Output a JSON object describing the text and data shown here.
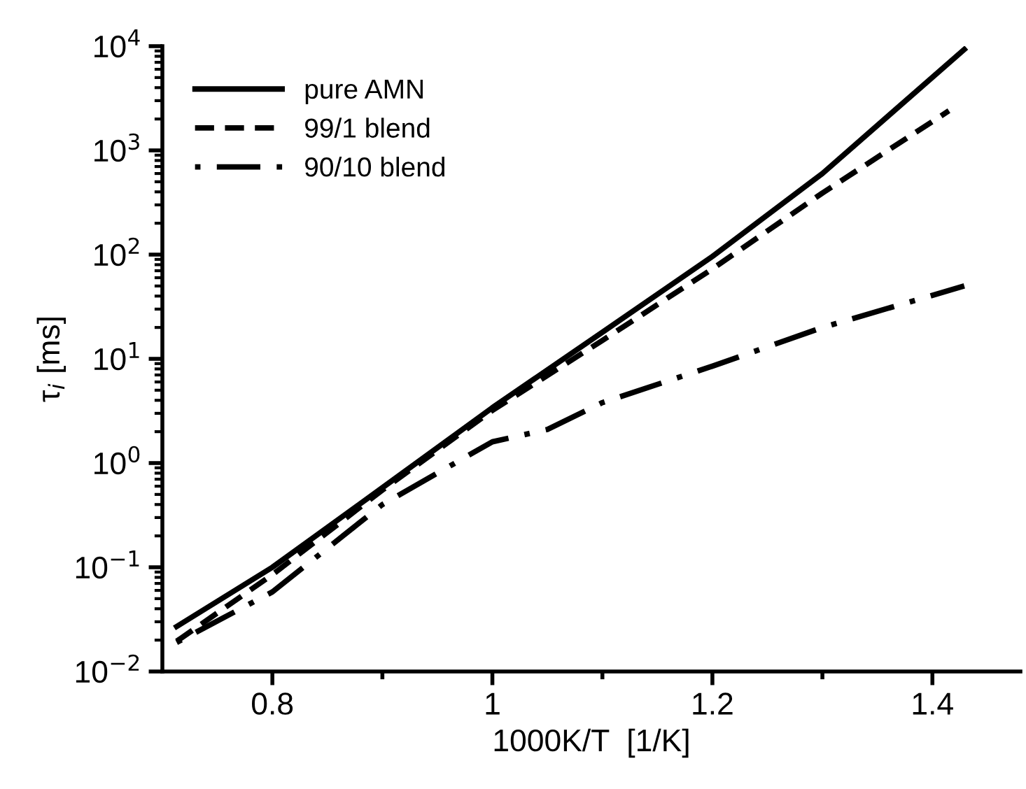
{
  "chart_data": {
    "type": "line",
    "xlabel": "1000K/T  [1/K]",
    "ylabel": "τ$_{i}$ [ms]",
    "log": "y",
    "legend": "top left",
    "grid": false,
    "marker": "none",
    "xlim": [
      0.7,
      1.48
    ],
    "xticks": [
      0.8,
      {
        "value": 0.9,
        "label": null
      },
      1,
      {
        "value": 1.1,
        "label": null
      },
      1.2,
      {
        "value": 1.3,
        "label": null
      },
      1.4
    ],
    "ylim": [
      0.01,
      10000
    ],
    "yticks": [
      {
        "value": 0.01,
        "label": "10$^{−2}$"
      },
      {
        "value": 0.1,
        "label": "10$^{−1}$"
      },
      {
        "value": 1,
        "label": "10$^{0}$"
      },
      {
        "value": 10,
        "label": "10$^{1}$"
      },
      {
        "value": 100,
        "label": "10$^{2}$"
      },
      {
        "value": 1000,
        "label": "10$^{3}$"
      },
      {
        "value": 10000,
        "label": "10$^{4}$"
      }
    ],
    "series": [
      {
        "name": "pure AMN",
        "color": "#000000",
        "line_style": "solid",
        "x": [
          0.713,
          0.8,
          0.9,
          1.0,
          1.1,
          1.2,
          1.3,
          1.429
        ],
        "values": [
          0.027,
          0.1,
          0.58,
          3.4,
          18,
          96,
          600,
          9300
        ]
      },
      {
        "name": "99/1 blend",
        "color": "#000000",
        "line_style": "dashed",
        "x": [
          0.713,
          0.8,
          0.9,
          1.0,
          1.1,
          1.2,
          1.3,
          1.415
        ],
        "values": [
          0.0195,
          0.085,
          0.55,
          3.2,
          15,
          73,
          390,
          2400
        ]
      },
      {
        "name": "90/10 blend",
        "color": "#000000",
        "line_style": "dashdot",
        "x": [
          0.713,
          0.8,
          0.9,
          1.0,
          1.05,
          1.1,
          1.2,
          1.3,
          1.429
        ],
        "values": [
          0.019,
          0.058,
          0.4,
          1.6,
          2.1,
          3.8,
          8.5,
          20,
          50
        ]
      }
    ]
  }
}
